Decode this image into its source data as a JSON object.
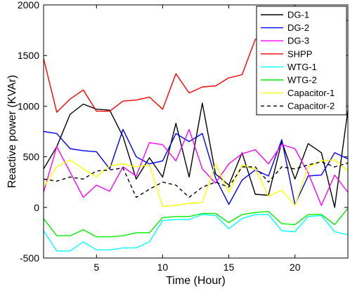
{
  "chart_data": {
    "type": "line",
    "xlabel": "Time (Hour)",
    "ylabel": "Reactive power (KVAr)",
    "xlim": [
      1,
      24
    ],
    "ylim": [
      -500,
      2000
    ],
    "xticks": [
      5,
      10,
      15,
      20
    ],
    "yticks": [
      -500,
      0,
      500,
      1000,
      1500,
      2000
    ],
    "grid": false,
    "legend_position": "top-right",
    "x": [
      1,
      2,
      3,
      4,
      5,
      6,
      7,
      8,
      9,
      10,
      11,
      12,
      13,
      14,
      15,
      16,
      17,
      18,
      19,
      20,
      21,
      22,
      23,
      24
    ],
    "series": [
      {
        "name": "DG-1",
        "color": "#000000",
        "dash": "solid",
        "values": [
          380,
          600,
          920,
          1020,
          970,
          960,
          700,
          280,
          490,
          300,
          830,
          300,
          1030,
          330,
          220,
          540,
          130,
          120,
          650,
          280,
          630,
          540,
          0,
          960
        ]
      },
      {
        "name": "DG-2",
        "color": "#0000ff",
        "dash": "solid",
        "values": [
          750,
          730,
          580,
          560,
          550,
          380,
          770,
          500,
          430,
          460,
          730,
          650,
          730,
          290,
          30,
          270,
          370,
          310,
          670,
          30,
          310,
          320,
          540,
          480
        ]
      },
      {
        "name": "DG-3",
        "color": "#ff00ff",
        "dash": "solid",
        "values": [
          150,
          600,
          350,
          100,
          220,
          160,
          400,
          310,
          640,
          620,
          460,
          770,
          380,
          240,
          430,
          530,
          570,
          430,
          620,
          580,
          340,
          20,
          320,
          150
        ]
      },
      {
        "name": "SHPP",
        "color": "#ff0000",
        "dash": "solid",
        "values": [
          1470,
          940,
          1070,
          1160,
          950,
          950,
          1050,
          1060,
          1090,
          970,
          1320,
          1130,
          1190,
          1200,
          1280,
          1310,
          1660,
          1670,
          1690,
          1710,
          1730,
          1760,
          1800,
          1850
        ]
      },
      {
        "name": "WTG-1",
        "color": "#00ffff",
        "dash": "solid",
        "values": [
          -230,
          -430,
          -430,
          -340,
          -420,
          -420,
          -400,
          -400,
          -340,
          -130,
          -120,
          -120,
          -70,
          -80,
          -210,
          -110,
          -70,
          -70,
          -230,
          -240,
          -90,
          -80,
          -240,
          -270
        ]
      },
      {
        "name": "WTG-2",
        "color": "#00ee00",
        "dash": "solid",
        "values": [
          -110,
          -280,
          -280,
          -220,
          -290,
          -290,
          -280,
          -250,
          -250,
          -100,
          -90,
          -90,
          -60,
          -60,
          -150,
          -70,
          -50,
          -40,
          -160,
          -170,
          -70,
          -70,
          -170,
          -10
        ]
      },
      {
        "name": "Capacitor-1",
        "color": "#ffff00",
        "dash": "solid",
        "values": [
          200,
          400,
          470,
          380,
          300,
          410,
          430,
          400,
          420,
          10,
          20,
          40,
          50,
          430,
          150,
          420,
          380,
          110,
          170,
          20,
          400,
          460,
          470,
          360
        ]
      },
      {
        "name": "Capacitor-2",
        "color": "#000000",
        "dash": "dashed",
        "values": [
          280,
          260,
          300,
          280,
          360,
          370,
          390,
          100,
          180,
          250,
          220,
          100,
          200,
          250,
          200,
          400,
          400,
          250,
          400,
          380,
          420,
          450,
          400,
          440
        ]
      }
    ]
  }
}
